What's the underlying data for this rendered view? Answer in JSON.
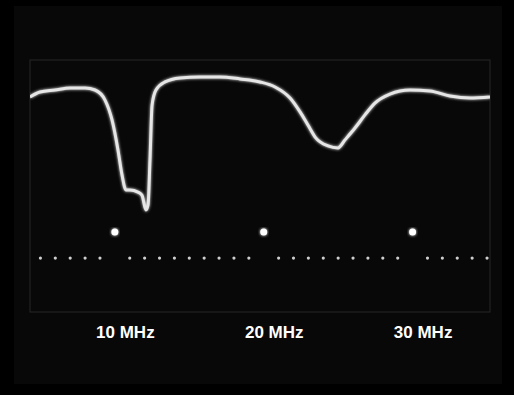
{
  "chart_data": {
    "type": "line",
    "xlim": [
      4.3,
      35.2
    ],
    "ylim": [
      0,
      100
    ],
    "xticks": [
      {
        "value": 10,
        "label": "10 MHz"
      },
      {
        "value": 20,
        "label": "20 MHz"
      },
      {
        "value": 30,
        "label": "30 MHz"
      }
    ],
    "tick_labels": "x",
    "grid": false,
    "series": [
      {
        "type": "line",
        "color": "#e6e6e6",
        "x": [
          4.3,
          4.97,
          5.98,
          6.99,
          8.0,
          8.67,
          9.34,
          9.81,
          10.21,
          10.48,
          10.75,
          11.02,
          11.55,
          11.82,
          12.09,
          12.23,
          12.36,
          12.5,
          12.76,
          13.37,
          14.38,
          15.72,
          17.06,
          18.41,
          19.75,
          20.76,
          21.77,
          22.44,
          22.97,
          23.51,
          24.32,
          24.99,
          25.46,
          26.13,
          26.8,
          27.47,
          28.48,
          29.83,
          31.17,
          32.51,
          33.86,
          35.2
        ],
        "values": [
          85.3,
          87.3,
          88.1,
          88.9,
          88.9,
          88.1,
          84.1,
          76.2,
          64.3,
          54.4,
          48.4,
          48.4,
          47.6,
          46.4,
          40.5,
          42.5,
          60.3,
          82.1,
          88.1,
          91.3,
          92.9,
          93.3,
          93.3,
          92.5,
          91.3,
          89.3,
          84.9,
          79.4,
          74.2,
          69.0,
          65.9,
          65.1,
          68.3,
          73.0,
          78.2,
          82.9,
          86.5,
          88.1,
          87.7,
          85.7,
          84.9,
          85.3
        ]
      },
      {
        "type": "scatter",
        "color": "#cfcfcf",
        "marker": "circle",
        "x": [
          5,
          6,
          7,
          8,
          9,
          10,
          11,
          12,
          13,
          14,
          15,
          16,
          17,
          18,
          19,
          20,
          21,
          22,
          23,
          24,
          25,
          26,
          27,
          28,
          29,
          30,
          31,
          32,
          33,
          34,
          35
        ],
        "values": [
          21.4,
          21.4,
          21.4,
          21.4,
          21.4,
          31.7,
          21.4,
          21.4,
          21.4,
          21.4,
          21.4,
          21.4,
          21.4,
          21.4,
          21.4,
          31.7,
          21.4,
          21.4,
          21.4,
          21.4,
          21.4,
          21.4,
          21.4,
          21.4,
          21.4,
          31.7,
          21.4,
          21.4,
          21.4,
          21.4,
          21.4
        ]
      }
    ]
  }
}
